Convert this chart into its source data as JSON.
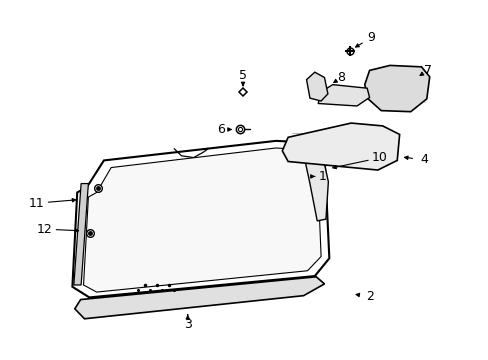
{
  "background_color": "#ffffff",
  "line_color": "#000000",
  "figure_width": 4.89,
  "figure_height": 3.6,
  "dpi": 100,
  "font_size": 9
}
